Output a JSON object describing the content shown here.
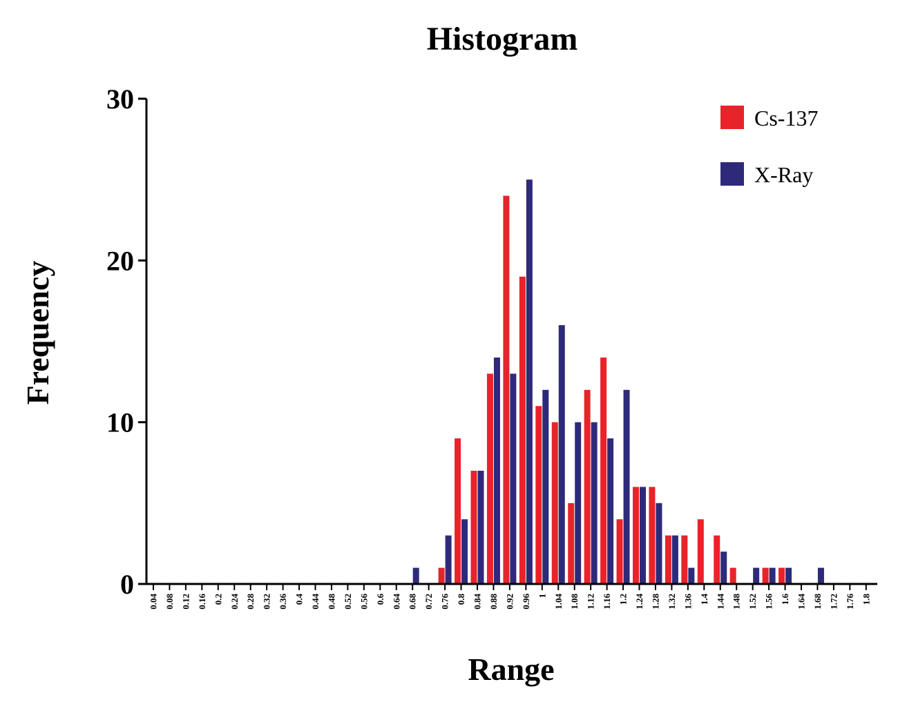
{
  "chart_data": {
    "type": "bar",
    "title": "Histogram",
    "xlabel": "Range",
    "ylabel": "Frequency",
    "ylim": [
      0,
      30
    ],
    "yticks": [
      "0",
      "10",
      "20",
      "30"
    ],
    "grid": false,
    "legend_position": "top-right",
    "categories": [
      "0.04",
      "0.08",
      "0.12",
      "0.16",
      "0.2",
      "0.24",
      "0.28",
      "0.32",
      "0.36",
      "0.4",
      "0.44",
      "0.48",
      "0.52",
      "0.56",
      "0.6",
      "0.64",
      "0.68",
      "0.72",
      "0.76",
      "0.8",
      "0.84",
      "0.88",
      "0.92",
      "0.96",
      "1",
      "1.04",
      "1.08",
      "1.12",
      "1.16",
      "1.2",
      "1.24",
      "1.28",
      "1.32",
      "1.36",
      "1.4",
      "1.44",
      "1.48",
      "1.52",
      "1.56",
      "1.6",
      "1.64",
      "1.68",
      "1.72",
      "1.76",
      "1.8"
    ],
    "series": [
      {
        "name": "Cs-137",
        "color": "#e8242a",
        "values": [
          0,
          0,
          0,
          0,
          0,
          0,
          0,
          0,
          0,
          0,
          0,
          0,
          0,
          0,
          0,
          0,
          0,
          0,
          1,
          9,
          7,
          13,
          24,
          19,
          11,
          10,
          5,
          12,
          14,
          4,
          6,
          6,
          3,
          3,
          4,
          3,
          1,
          0,
          1,
          1,
          0,
          0,
          0,
          0,
          0
        ]
      },
      {
        "name": "X-Ray",
        "color": "#2e2a7a",
        "values": [
          0,
          0,
          0,
          0,
          0,
          0,
          0,
          0,
          0,
          0,
          0,
          0,
          0,
          0,
          0,
          0,
          1,
          0,
          3,
          4,
          7,
          14,
          13,
          25,
          12,
          16,
          10,
          10,
          9,
          12,
          6,
          5,
          3,
          1,
          0,
          2,
          0,
          1,
          1,
          1,
          0,
          1,
          0,
          0,
          0
        ]
      }
    ]
  }
}
